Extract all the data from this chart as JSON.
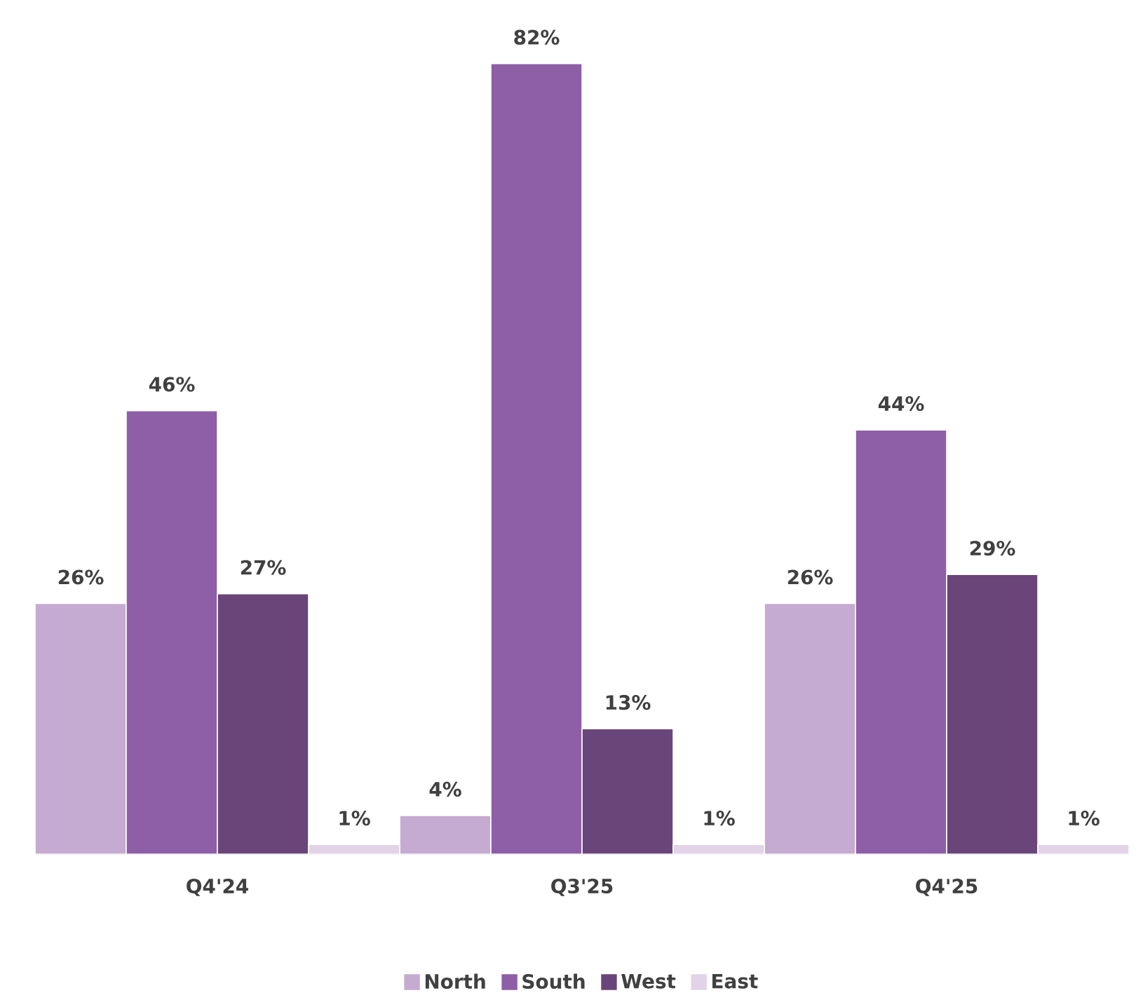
{
  "chart_data": {
    "type": "bar",
    "categories": [
      "Q4'24",
      "Q3'25",
      "Q4'25"
    ],
    "series": [
      {
        "name": "North",
        "color": "#c5abd1",
        "values": [
          26,
          4,
          26
        ],
        "value_labels": [
          "26%",
          "4%",
          "26%"
        ]
      },
      {
        "name": "South",
        "color": "#8e5ea6",
        "values": [
          46,
          82,
          44
        ],
        "value_labels": [
          "46%",
          "82%",
          "44%"
        ]
      },
      {
        "name": "West",
        "color": "#6a4579",
        "values": [
          27,
          13,
          29
        ],
        "value_labels": [
          "27%",
          "13%",
          "29%"
        ]
      },
      {
        "name": "East",
        "color": "#e2d3e8",
        "values": [
          1,
          1,
          1
        ],
        "value_labels": [
          "1%",
          "1%",
          "1%"
        ]
      }
    ],
    "legend": "bottom"
  }
}
